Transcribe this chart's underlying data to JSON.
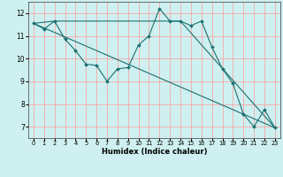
{
  "xlabel": "Humidex (Indice chaleur)",
  "bg_color": "#cff0f0",
  "line_color": "#1a7070",
  "grid_color": "#ff9999",
  "xlim": [
    -0.5,
    23.5
  ],
  "ylim": [
    6.5,
    12.5
  ],
  "xticks": [
    0,
    1,
    2,
    3,
    4,
    5,
    6,
    7,
    8,
    9,
    10,
    11,
    12,
    13,
    14,
    15,
    16,
    17,
    18,
    19,
    20,
    21,
    22,
    23
  ],
  "yticks": [
    7,
    8,
    9,
    10,
    11,
    12
  ],
  "series1_x": [
    0,
    1,
    2,
    3,
    4,
    5,
    6,
    7,
    8,
    9,
    10,
    11,
    12,
    13,
    14,
    15,
    16,
    17,
    18,
    19,
    20,
    21,
    22,
    23
  ],
  "series1_y": [
    11.55,
    11.3,
    11.65,
    10.85,
    10.35,
    9.75,
    9.7,
    9.0,
    9.55,
    9.6,
    10.6,
    11.0,
    12.2,
    11.65,
    11.65,
    11.45,
    11.65,
    10.5,
    9.55,
    8.9,
    7.55,
    7.0,
    7.75,
    6.95
  ],
  "series2_x": [
    0,
    2,
    14,
    23
  ],
  "series2_y": [
    11.55,
    11.65,
    11.65,
    6.95
  ],
  "series3_x": [
    0,
    23
  ],
  "series3_y": [
    11.55,
    6.95
  ],
  "lw": 0.8,
  "ms": 2.0
}
